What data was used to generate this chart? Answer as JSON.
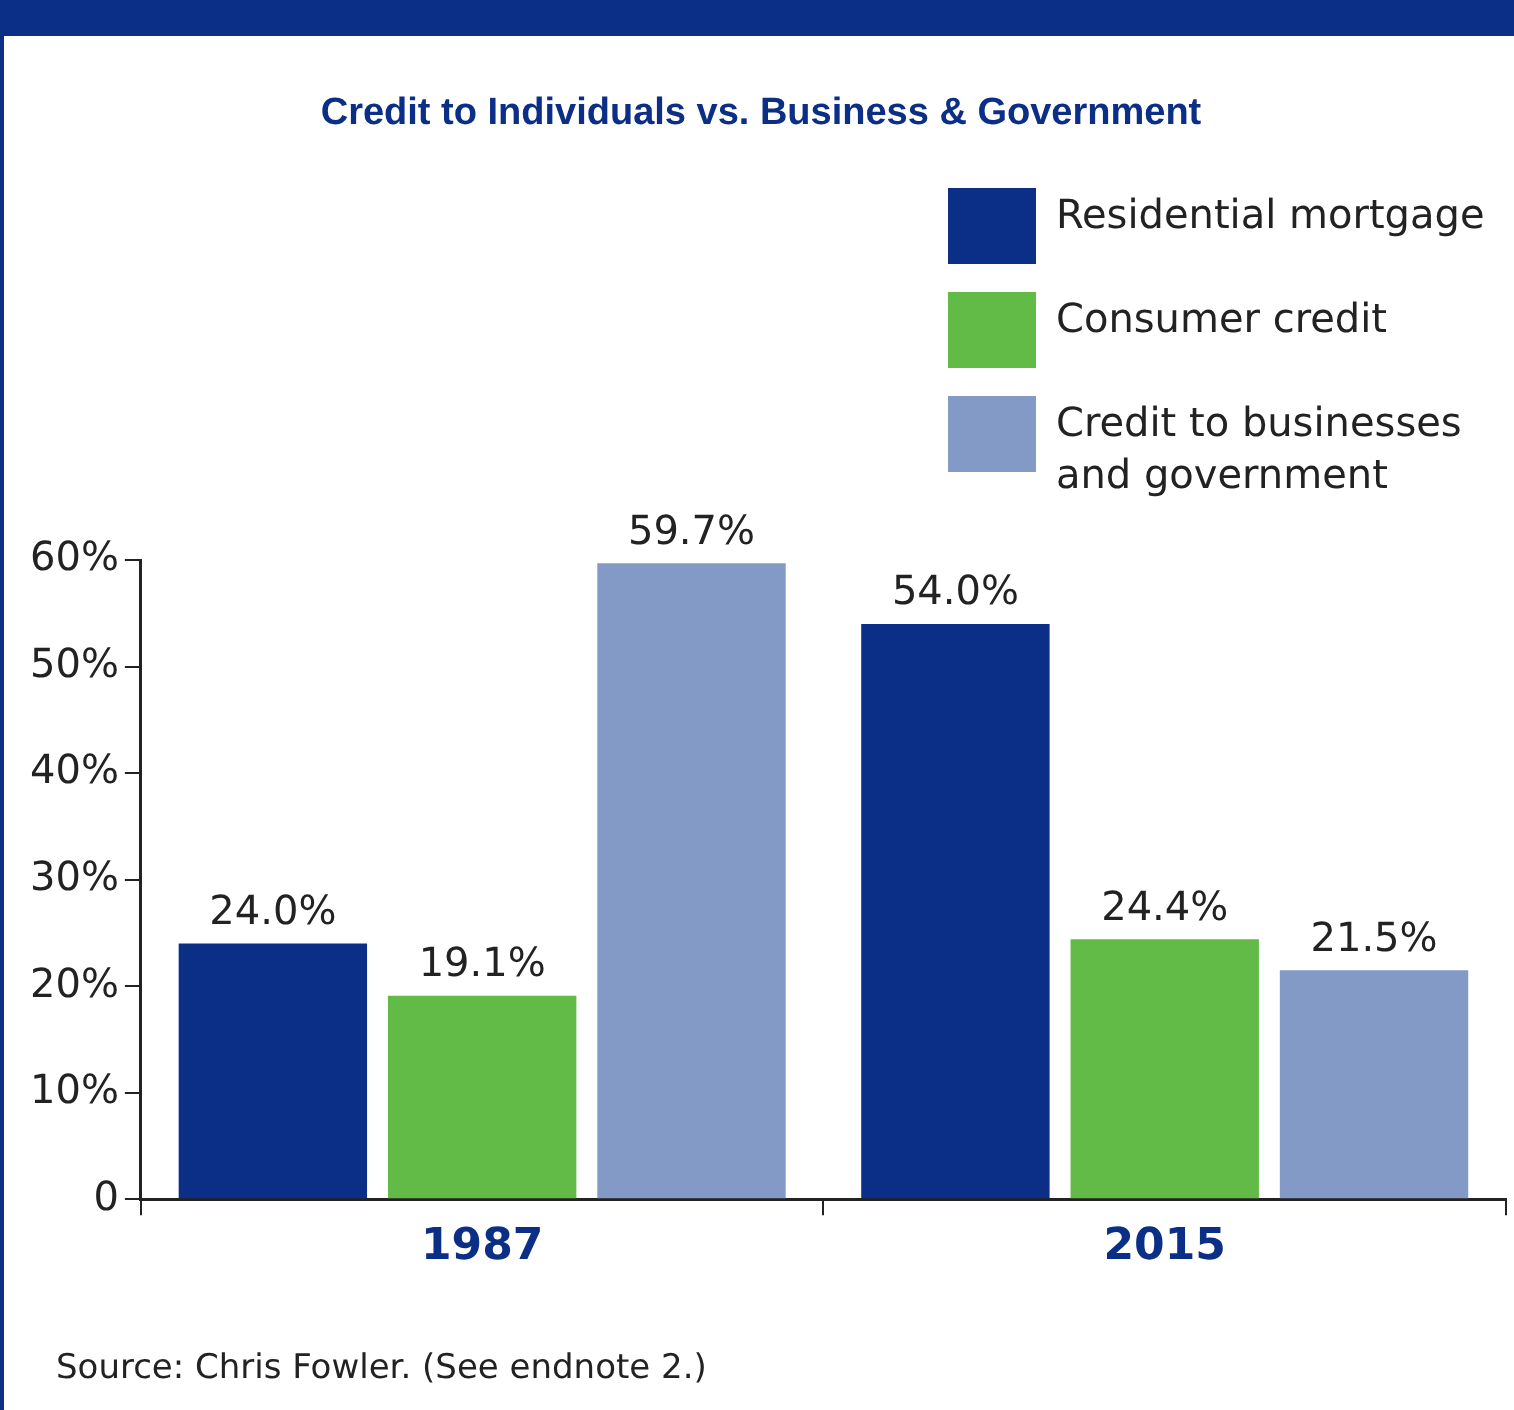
{
  "chart_data": {
    "type": "bar",
    "title": "Credit to Individuals vs. Business & Government",
    "categories": [
      "1987",
      "2015"
    ],
    "series": [
      {
        "name": "Residential mortgage",
        "color": "#0b2f86",
        "values": [
          24.0,
          54.0
        ],
        "value_labels": [
          "24.0%",
          "54.0%"
        ]
      },
      {
        "name": "Consumer credit",
        "color": "#62bb47",
        "values": [
          19.1,
          24.4
        ],
        "value_labels": [
          "19.1%",
          "24.4%"
        ]
      },
      {
        "name": "Credit to businesses and government",
        "color": "#8399c6",
        "values": [
          59.7,
          21.5
        ],
        "value_labels": [
          "59.7%",
          "21.5%"
        ]
      }
    ],
    "ylim": [
      0,
      60
    ],
    "yticks": [
      0,
      {
        "value": 10,
        "label": "10%"
      },
      {
        "value": 20,
        "label": "20%"
      },
      {
        "value": 30,
        "label": "30%"
      },
      {
        "value": 40,
        "label": "40%"
      },
      {
        "value": 50,
        "label": "50%"
      },
      {
        "value": 60,
        "label": "60%"
      }
    ],
    "grid": false,
    "legend": "top right",
    "annotations": [
      "Source: Chris Fowler. (See endnote 2.)"
    ]
  }
}
